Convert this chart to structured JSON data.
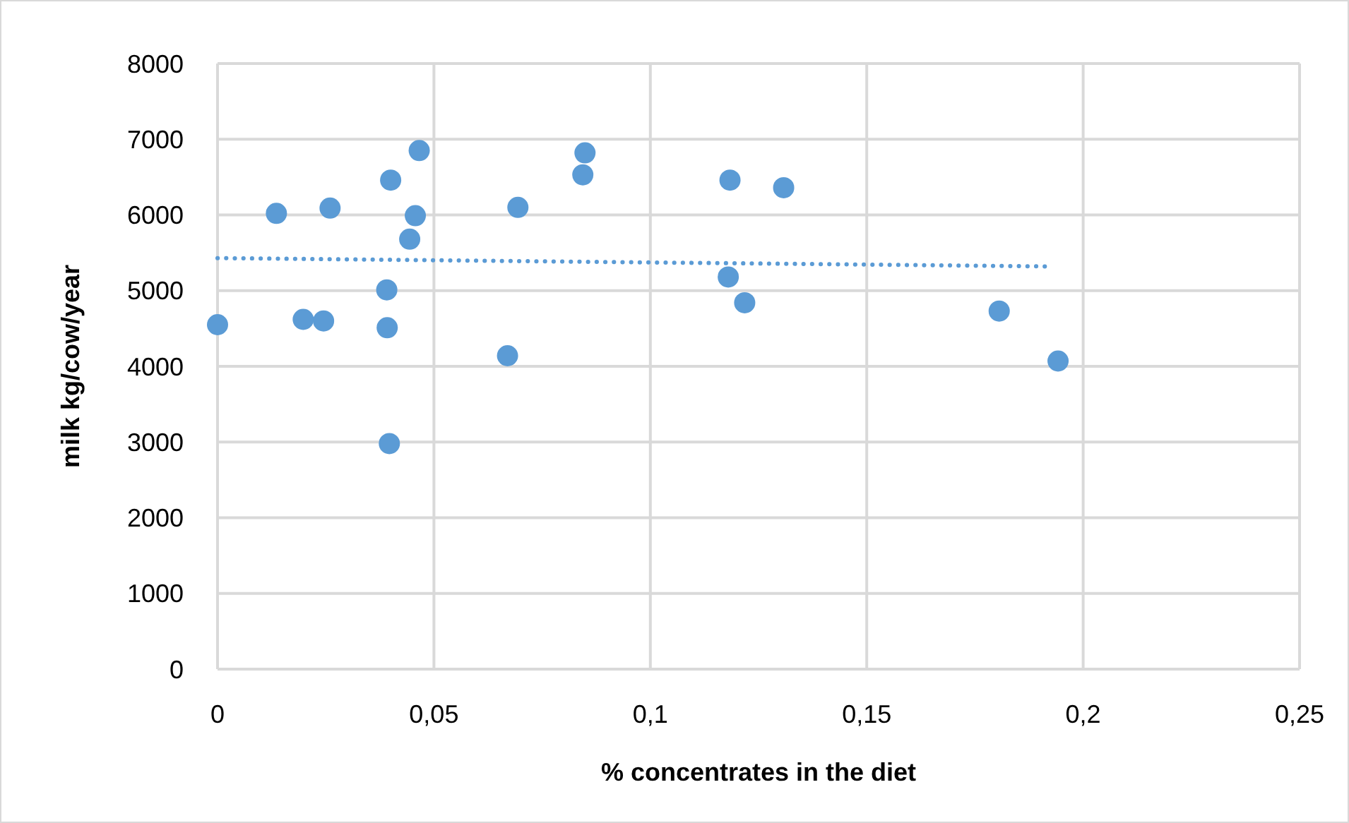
{
  "chart_data": {
    "type": "scatter",
    "xlabel": "% concentrates in the diet",
    "ylabel": "milk kg/cow/year",
    "xlim": [
      0,
      0.25
    ],
    "xticks": [
      {
        "value": 0,
        "label": "0"
      },
      {
        "value": 0.05,
        "label": "0,05"
      },
      {
        "value": 0.1,
        "label": "0,1"
      },
      {
        "value": 0.15,
        "label": "0,15"
      },
      {
        "value": 0.2,
        "label": "0,2"
      },
      {
        "value": 0.25,
        "label": "0,25"
      }
    ],
    "ylim": [
      0,
      8000
    ],
    "yticks": [
      0,
      1000,
      2000,
      3000,
      4000,
      5000,
      6000,
      7000,
      8000
    ],
    "grid": true,
    "series": [
      {
        "color": "#5b9bd5",
        "marker": "circle",
        "x": [
          0,
          0.0136,
          0.026,
          0.0198,
          0.0245,
          0.04,
          0.0466,
          0.0457,
          0.0444,
          0.0391,
          0.0392,
          0.0397,
          0.067,
          0.0694,
          0.0849,
          0.0844,
          0.1184,
          0.1308,
          0.118,
          0.1218,
          0.1806,
          0.1942
        ],
        "values": [
          4550,
          6020,
          6090,
          4620,
          4600,
          6460,
          6850,
          5990,
          5680,
          5010,
          4510,
          2980,
          4140,
          6100,
          6820,
          6530,
          6460,
          6360,
          5180,
          4840,
          4730,
          4070
        ]
      },
      {
        "type": "line",
        "color": "#5b9bd5",
        "marker": "none",
        "line_style": "dotted",
        "x": [
          0,
          0.1916
        ],
        "values": [
          5430,
          5320
        ]
      }
    ]
  }
}
